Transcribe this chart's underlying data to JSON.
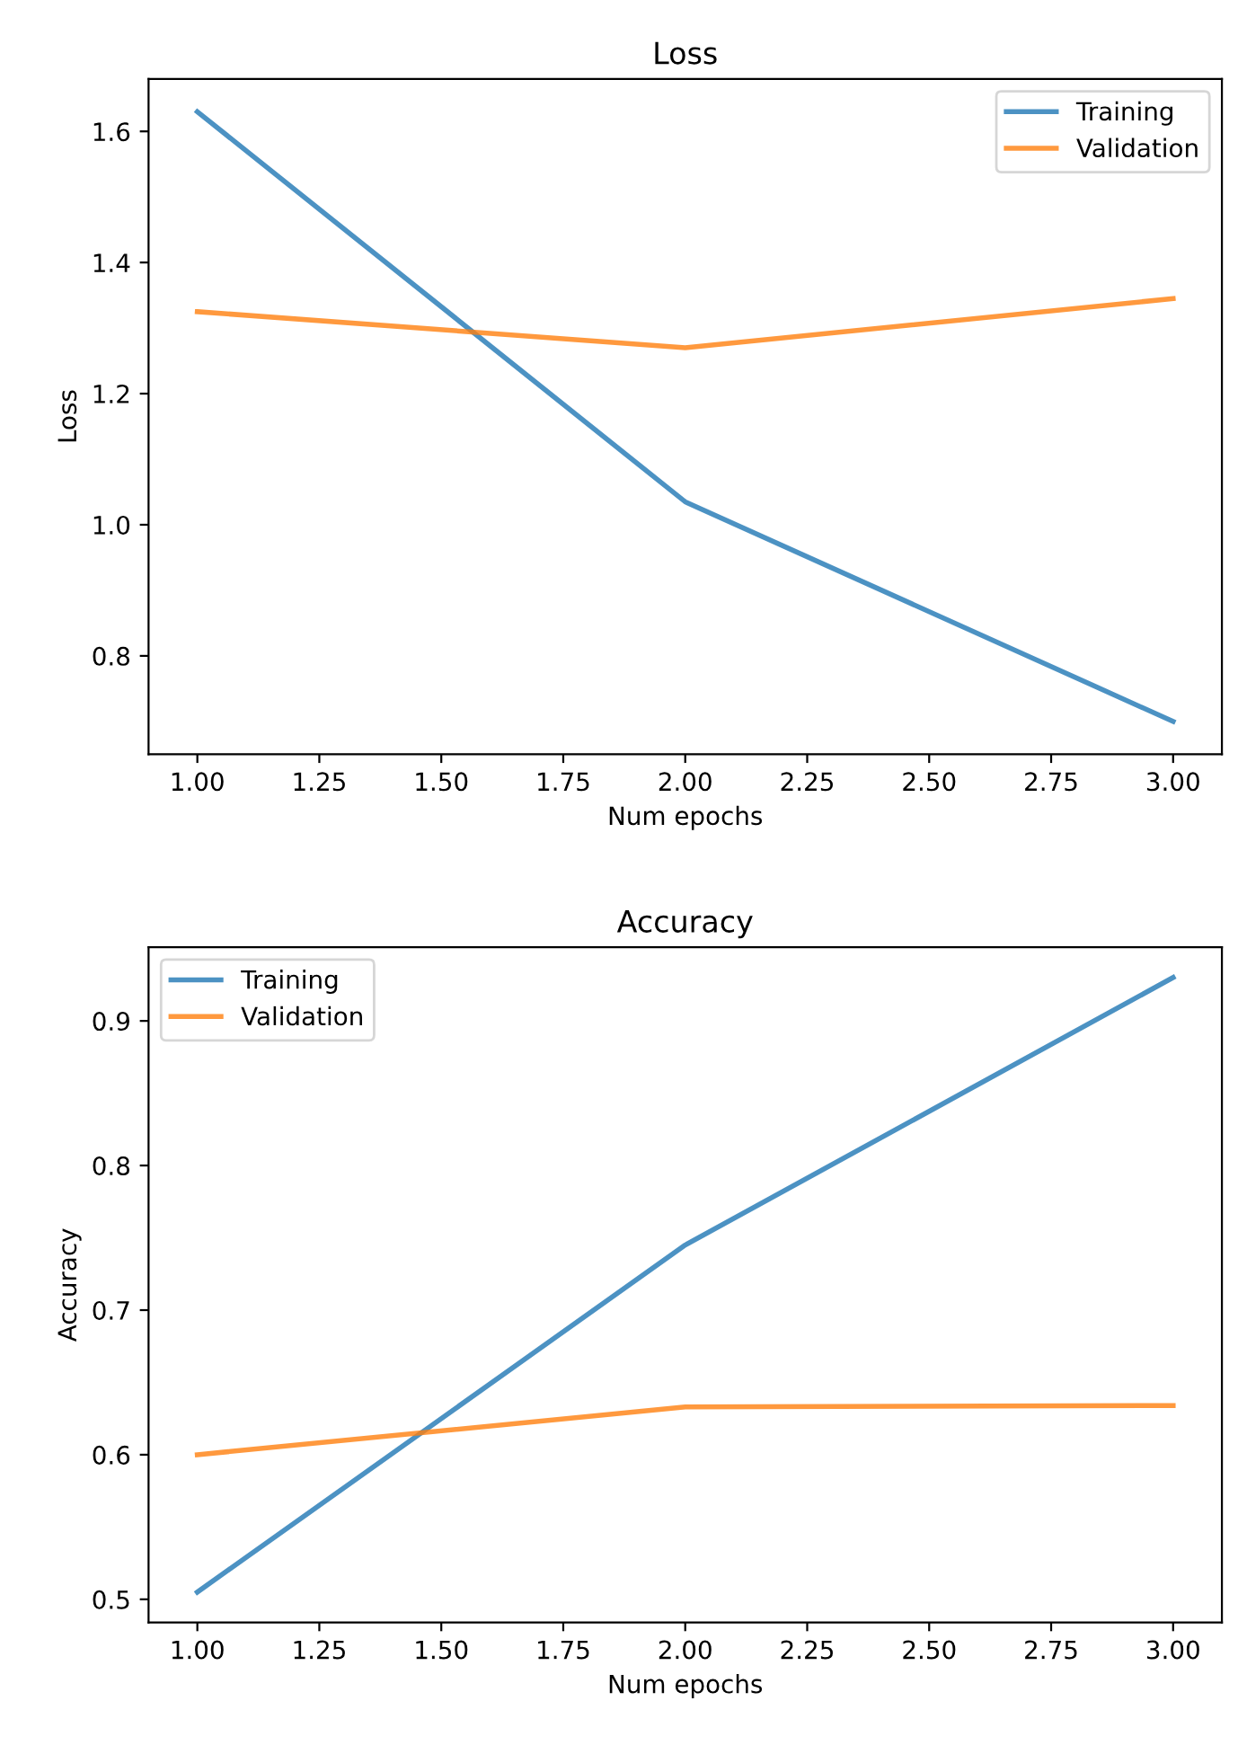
{
  "chart_data": [
    {
      "type": "line",
      "title": "Loss",
      "xlabel": "Num epochs",
      "ylabel": "Loss",
      "x": [
        1,
        2,
        3
      ],
      "series": [
        {
          "name": "Training",
          "color": "#1f77b4",
          "values": [
            1.63,
            1.035,
            0.7
          ]
        },
        {
          "name": "Validation",
          "color": "#ff7f0e",
          "values": [
            1.325,
            1.27,
            1.345
          ]
        }
      ],
      "xlim": [
        0.9,
        3.1
      ],
      "xticks": [
        {
          "value": 1,
          "label": "1.00"
        },
        {
          "value": 1.25,
          "label": "1.25"
        },
        {
          "value": 1.5,
          "label": "1.50"
        },
        {
          "value": 1.75,
          "label": "1.75"
        },
        {
          "value": 2,
          "label": "2.00"
        },
        {
          "value": 2.25,
          "label": "2.25"
        },
        {
          "value": 2.5,
          "label": "2.50"
        },
        {
          "value": 2.75,
          "label": "2.75"
        },
        {
          "value": 3,
          "label": "3.00"
        }
      ],
      "ylim": [
        0.65,
        1.68
      ],
      "yticks": [
        {
          "value": 0.8,
          "label": "0.8"
        },
        {
          "value": 1.0,
          "label": "1.0"
        },
        {
          "value": 1.2,
          "label": "1.2"
        },
        {
          "value": 1.4,
          "label": "1.4"
        },
        {
          "value": 1.6,
          "label": "1.6"
        }
      ],
      "legend": "top right",
      "grid": false,
      "marker": "none",
      "line_style": "solid"
    },
    {
      "type": "line",
      "title": "Accuracy",
      "xlabel": "Num epochs",
      "ylabel": "Accuracy",
      "x": [
        1,
        2,
        3
      ],
      "series": [
        {
          "name": "Training",
          "color": "#1f77b4",
          "values": [
            0.505,
            0.745,
            0.93
          ]
        },
        {
          "name": "Validation",
          "color": "#ff7f0e",
          "values": [
            0.6,
            0.633,
            0.634
          ]
        }
      ],
      "xlim": [
        0.9,
        3.1
      ],
      "xticks": [
        {
          "value": 1,
          "label": "1.00"
        },
        {
          "value": 1.25,
          "label": "1.25"
        },
        {
          "value": 1.5,
          "label": "1.50"
        },
        {
          "value": 1.75,
          "label": "1.75"
        },
        {
          "value": 2,
          "label": "2.00"
        },
        {
          "value": 2.25,
          "label": "2.25"
        },
        {
          "value": 2.5,
          "label": "2.50"
        },
        {
          "value": 2.75,
          "label": "2.75"
        },
        {
          "value": 3,
          "label": "3.00"
        }
      ],
      "ylim": [
        0.484,
        0.951
      ],
      "yticks": [
        0.5,
        0.6,
        0.7,
        0.8,
        0.9
      ],
      "legend": "top left",
      "grid": false,
      "marker": "none",
      "line_style": "solid"
    }
  ]
}
